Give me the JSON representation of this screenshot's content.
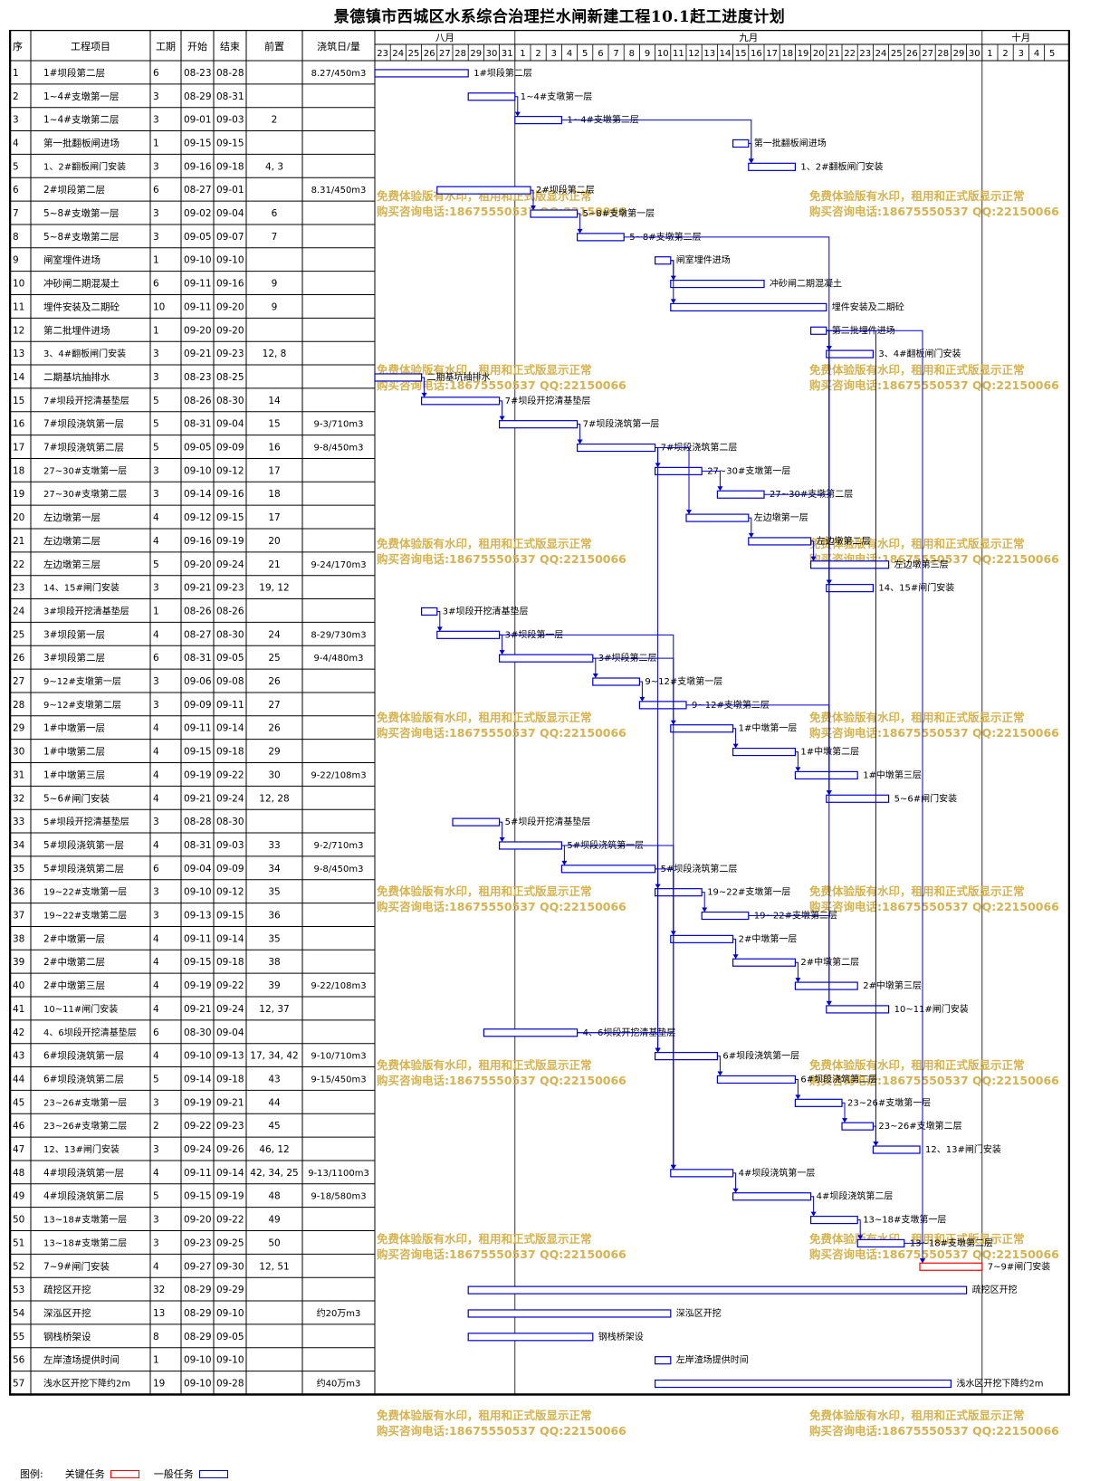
{
  "title": "景德镇市西城区水系综合治理拦水闸新建工程10.1赶工进度计划",
  "headers": {
    "seq": "序",
    "name": "工程项目",
    "dur": "工期",
    "start": "开始",
    "end": "结束",
    "pred": "前置",
    "pour": "浇筑日/量"
  },
  "months": [
    {
      "label": "八月",
      "days": [
        "23",
        "24",
        "25",
        "26",
        "27",
        "28",
        "29",
        "30",
        "31"
      ]
    },
    {
      "label": "九月",
      "days": [
        "1",
        "2",
        "3",
        "4",
        "5",
        "6",
        "7",
        "8",
        "9",
        "10",
        "11",
        "12",
        "13",
        "14",
        "15",
        "16",
        "17",
        "18",
        "19",
        "20",
        "21",
        "22",
        "23",
        "24",
        "25",
        "26",
        "27",
        "28",
        "29",
        "30"
      ]
    },
    {
      "label": "十月",
      "days": [
        "1",
        "2",
        "3",
        "4",
        "5"
      ]
    }
  ],
  "watermark": [
    "免费体验版有水印，租用和正式版显示正常",
    "购买咨询电话:18675550537 QQ:22150066"
  ],
  "legend": {
    "label": "图例:",
    "critical": "关键任务",
    "normal": "一般任务",
    "critical_color": "#ff0000",
    "normal_color": "#0000cc"
  },
  "chart_data": {
    "type": "gantt",
    "timeline_start": "08-23",
    "timeline_end": "10-05",
    "tasks": [
      {
        "seq": "1",
        "name": "1#坝段第二层",
        "dur": "6",
        "start": "08-23",
        "end": "08-28",
        "pred": "",
        "pour": "8.27/450m3"
      },
      {
        "seq": "2",
        "name": "1~4#支墩第一层",
        "dur": "3",
        "start": "08-29",
        "end": "08-31",
        "pred": "",
        "pour": ""
      },
      {
        "seq": "3",
        "name": "1~4#支墩第二层",
        "dur": "3",
        "start": "09-01",
        "end": "09-03",
        "pred": "2",
        "pour": ""
      },
      {
        "seq": "4",
        "name": "第一批翻板闸进场",
        "dur": "1",
        "start": "09-15",
        "end": "09-15",
        "pred": "",
        "pour": ""
      },
      {
        "seq": "5",
        "name": "1、2#翻板闸门安装",
        "dur": "3",
        "start": "09-16",
        "end": "09-18",
        "pred": "4,3",
        "pour": ""
      },
      {
        "seq": "6",
        "name": "2#坝段第二层",
        "dur": "6",
        "start": "08-27",
        "end": "09-01",
        "pred": "",
        "pour": "8.31/450m3"
      },
      {
        "seq": "7",
        "name": "5~8#支墩第一层",
        "dur": "3",
        "start": "09-02",
        "end": "09-04",
        "pred": "6",
        "pour": ""
      },
      {
        "seq": "8",
        "name": "5~8#支墩第二层",
        "dur": "3",
        "start": "09-05",
        "end": "09-07",
        "pred": "7",
        "pour": ""
      },
      {
        "seq": "9",
        "name": "闸室埋件进场",
        "dur": "1",
        "start": "09-10",
        "end": "09-10",
        "pred": "",
        "pour": ""
      },
      {
        "seq": "10",
        "name": "冲砂闸二期混凝土",
        "dur": "6",
        "start": "09-11",
        "end": "09-16",
        "pred": "9",
        "pour": ""
      },
      {
        "seq": "11",
        "name": "埋件安装及二期砼",
        "dur": "10",
        "start": "09-11",
        "end": "09-20",
        "pred": "9",
        "pour": ""
      },
      {
        "seq": "12",
        "name": "第二批埋件进场",
        "dur": "1",
        "start": "09-20",
        "end": "09-20",
        "pred": "",
        "pour": ""
      },
      {
        "seq": "13",
        "name": "3、4#翻板闸门安装",
        "dur": "3",
        "start": "09-21",
        "end": "09-23",
        "pred": "12,8",
        "pour": ""
      },
      {
        "seq": "14",
        "name": "二期基坑抽排水",
        "dur": "3",
        "start": "08-23",
        "end": "08-25",
        "pred": "",
        "pour": ""
      },
      {
        "seq": "15",
        "name": "7#坝段开挖清基垫层",
        "dur": "5",
        "start": "08-26",
        "end": "08-30",
        "pred": "14",
        "pour": ""
      },
      {
        "seq": "16",
        "name": "7#坝段浇筑第一层",
        "dur": "5",
        "start": "08-31",
        "end": "09-04",
        "pred": "15",
        "pour": "9-3/710m3"
      },
      {
        "seq": "17",
        "name": "7#坝段浇筑第二层",
        "dur": "5",
        "start": "09-05",
        "end": "09-09",
        "pred": "16",
        "pour": "9-8/450m3"
      },
      {
        "seq": "18",
        "name": "27~30#支墩第一层",
        "dur": "3",
        "start": "09-10",
        "end": "09-12",
        "pred": "17",
        "pour": ""
      },
      {
        "seq": "19",
        "name": "27~30#支墩第二层",
        "dur": "3",
        "start": "09-14",
        "end": "09-16",
        "pred": "18",
        "pour": ""
      },
      {
        "seq": "20",
        "name": "左边墩第一层",
        "dur": "4",
        "start": "09-12",
        "end": "09-15",
        "pred": "17",
        "pour": ""
      },
      {
        "seq": "21",
        "name": "左边墩第二层",
        "dur": "4",
        "start": "09-16",
        "end": "09-19",
        "pred": "20",
        "pour": ""
      },
      {
        "seq": "22",
        "name": "左边墩第三层",
        "dur": "5",
        "start": "09-20",
        "end": "09-24",
        "pred": "21",
        "pour": "9-24/170m3"
      },
      {
        "seq": "23",
        "name": "14、15#闸门安装",
        "dur": "3",
        "start": "09-21",
        "end": "09-23",
        "pred": "19,12",
        "pour": ""
      },
      {
        "seq": "24",
        "name": "3#坝段开挖清基垫层",
        "dur": "1",
        "start": "08-26",
        "end": "08-26",
        "pred": "",
        "pour": ""
      },
      {
        "seq": "25",
        "name": "3#坝段第一层",
        "dur": "4",
        "start": "08-27",
        "end": "08-30",
        "pred": "24",
        "pour": "8-29/730m3"
      },
      {
        "seq": "26",
        "name": "3#坝段第二层",
        "dur": "6",
        "start": "08-31",
        "end": "09-05",
        "pred": "25",
        "pour": "9-4/480m3"
      },
      {
        "seq": "27",
        "name": "9~12#支墩第一层",
        "dur": "3",
        "start": "09-06",
        "end": "09-08",
        "pred": "26",
        "pour": ""
      },
      {
        "seq": "28",
        "name": "9~12#支墩第二层",
        "dur": "3",
        "start": "09-09",
        "end": "09-11",
        "pred": "27",
        "pour": ""
      },
      {
        "seq": "29",
        "name": "1#中墩第一层",
        "dur": "4",
        "start": "09-11",
        "end": "09-14",
        "pred": "26",
        "pour": ""
      },
      {
        "seq": "30",
        "name": "1#中墩第二层",
        "dur": "4",
        "start": "09-15",
        "end": "09-18",
        "pred": "29",
        "pour": ""
      },
      {
        "seq": "31",
        "name": "1#中墩第三层",
        "dur": "4",
        "start": "09-19",
        "end": "09-22",
        "pred": "30",
        "pour": "9-22/108m3"
      },
      {
        "seq": "32",
        "name": "5~6#闸门安装",
        "dur": "4",
        "start": "09-21",
        "end": "09-24",
        "pred": "12,28",
        "pour": ""
      },
      {
        "seq": "33",
        "name": "5#坝段开挖清基垫层",
        "dur": "3",
        "start": "08-28",
        "end": "08-30",
        "pred": "",
        "pour": ""
      },
      {
        "seq": "34",
        "name": "5#坝段浇筑第一层",
        "dur": "4",
        "start": "08-31",
        "end": "09-03",
        "pred": "33",
        "pour": "9-2/710m3"
      },
      {
        "seq": "35",
        "name": "5#坝段浇筑第二层",
        "dur": "6",
        "start": "09-04",
        "end": "09-09",
        "pred": "34",
        "pour": "9-8/450m3"
      },
      {
        "seq": "36",
        "name": "19~22#支墩第一层",
        "dur": "3",
        "start": "09-10",
        "end": "09-12",
        "pred": "35",
        "pour": ""
      },
      {
        "seq": "37",
        "name": "19~22#支墩第二层",
        "dur": "3",
        "start": "09-13",
        "end": "09-15",
        "pred": "36",
        "pour": ""
      },
      {
        "seq": "38",
        "name": "2#中墩第一层",
        "dur": "4",
        "start": "09-11",
        "end": "09-14",
        "pred": "35",
        "pour": ""
      },
      {
        "seq": "39",
        "name": "2#中墩第二层",
        "dur": "4",
        "start": "09-15",
        "end": "09-18",
        "pred": "38",
        "pour": ""
      },
      {
        "seq": "40",
        "name": "2#中墩第三层",
        "dur": "4",
        "start": "09-19",
        "end": "09-22",
        "pred": "39",
        "pour": "9-22/108m3"
      },
      {
        "seq": "41",
        "name": "10~11#闸门安装",
        "dur": "4",
        "start": "09-21",
        "end": "09-24",
        "pred": "12,37",
        "pour": ""
      },
      {
        "seq": "42",
        "name": "4、6坝段开挖清基垫层",
        "dur": "6",
        "start": "08-30",
        "end": "09-04",
        "pred": "",
        "pour": ""
      },
      {
        "seq": "43",
        "name": "6#坝段浇筑第一层",
        "dur": "4",
        "start": "09-10",
        "end": "09-13",
        "pred": "17,34,42",
        "pour": "9-10/710m3"
      },
      {
        "seq": "44",
        "name": "6#坝段浇筑第二层",
        "dur": "5",
        "start": "09-14",
        "end": "09-18",
        "pred": "43",
        "pour": "9-15/450m3"
      },
      {
        "seq": "45",
        "name": "23~26#支墩第一层",
        "dur": "3",
        "start": "09-19",
        "end": "09-21",
        "pred": "44",
        "pour": ""
      },
      {
        "seq": "46",
        "name": "23~26#支墩第二层",
        "dur": "2",
        "start": "09-22",
        "end": "09-23",
        "pred": "45",
        "pour": ""
      },
      {
        "seq": "47",
        "name": "12、13#闸门安装",
        "dur": "3",
        "start": "09-24",
        "end": "09-26",
        "pred": "46,12",
        "pour": ""
      },
      {
        "seq": "48",
        "name": "4#坝段浇筑第一层",
        "dur": "4",
        "start": "09-11",
        "end": "09-14",
        "pred": "42,34,25",
        "pour": "9-13/1100m3"
      },
      {
        "seq": "49",
        "name": "4#坝段浇筑第二层",
        "dur": "5",
        "start": "09-15",
        "end": "09-19",
        "pred": "48",
        "pour": "9-18/580m3"
      },
      {
        "seq": "50",
        "name": "13~18#支墩第一层",
        "dur": "3",
        "start": "09-20",
        "end": "09-22",
        "pred": "49",
        "pour": ""
      },
      {
        "seq": "51",
        "name": "13~18#支墩第二层",
        "dur": "3",
        "start": "09-23",
        "end": "09-25",
        "pred": "50",
        "pour": ""
      },
      {
        "seq": "52",
        "name": "7~9#闸门安装",
        "dur": "4",
        "start": "09-27",
        "end": "09-30",
        "pred": "12,51",
        "pour": "",
        "critical": true
      },
      {
        "seq": "53",
        "name": "疏挖区开挖",
        "dur": "32",
        "start": "08-29",
        "end": "09-29",
        "pred": "",
        "pour": ""
      },
      {
        "seq": "54",
        "name": "深泓区开挖",
        "dur": "13",
        "start": "08-29",
        "end": "09-10",
        "pred": "",
        "pour": "约20万m3"
      },
      {
        "seq": "55",
        "name": "钢栈桥架设",
        "dur": "8",
        "start": "08-29",
        "end": "09-05",
        "pred": "",
        "pour": ""
      },
      {
        "seq": "56",
        "name": "左岸渣场提供时间",
        "dur": "1",
        "start": "09-10",
        "end": "09-10",
        "pred": "",
        "pour": ""
      },
      {
        "seq": "57",
        "name": "浅水区开挖下降约2m",
        "dur": "19",
        "start": "09-10",
        "end": "09-28",
        "pred": "",
        "pour": "约40万m3"
      }
    ]
  }
}
